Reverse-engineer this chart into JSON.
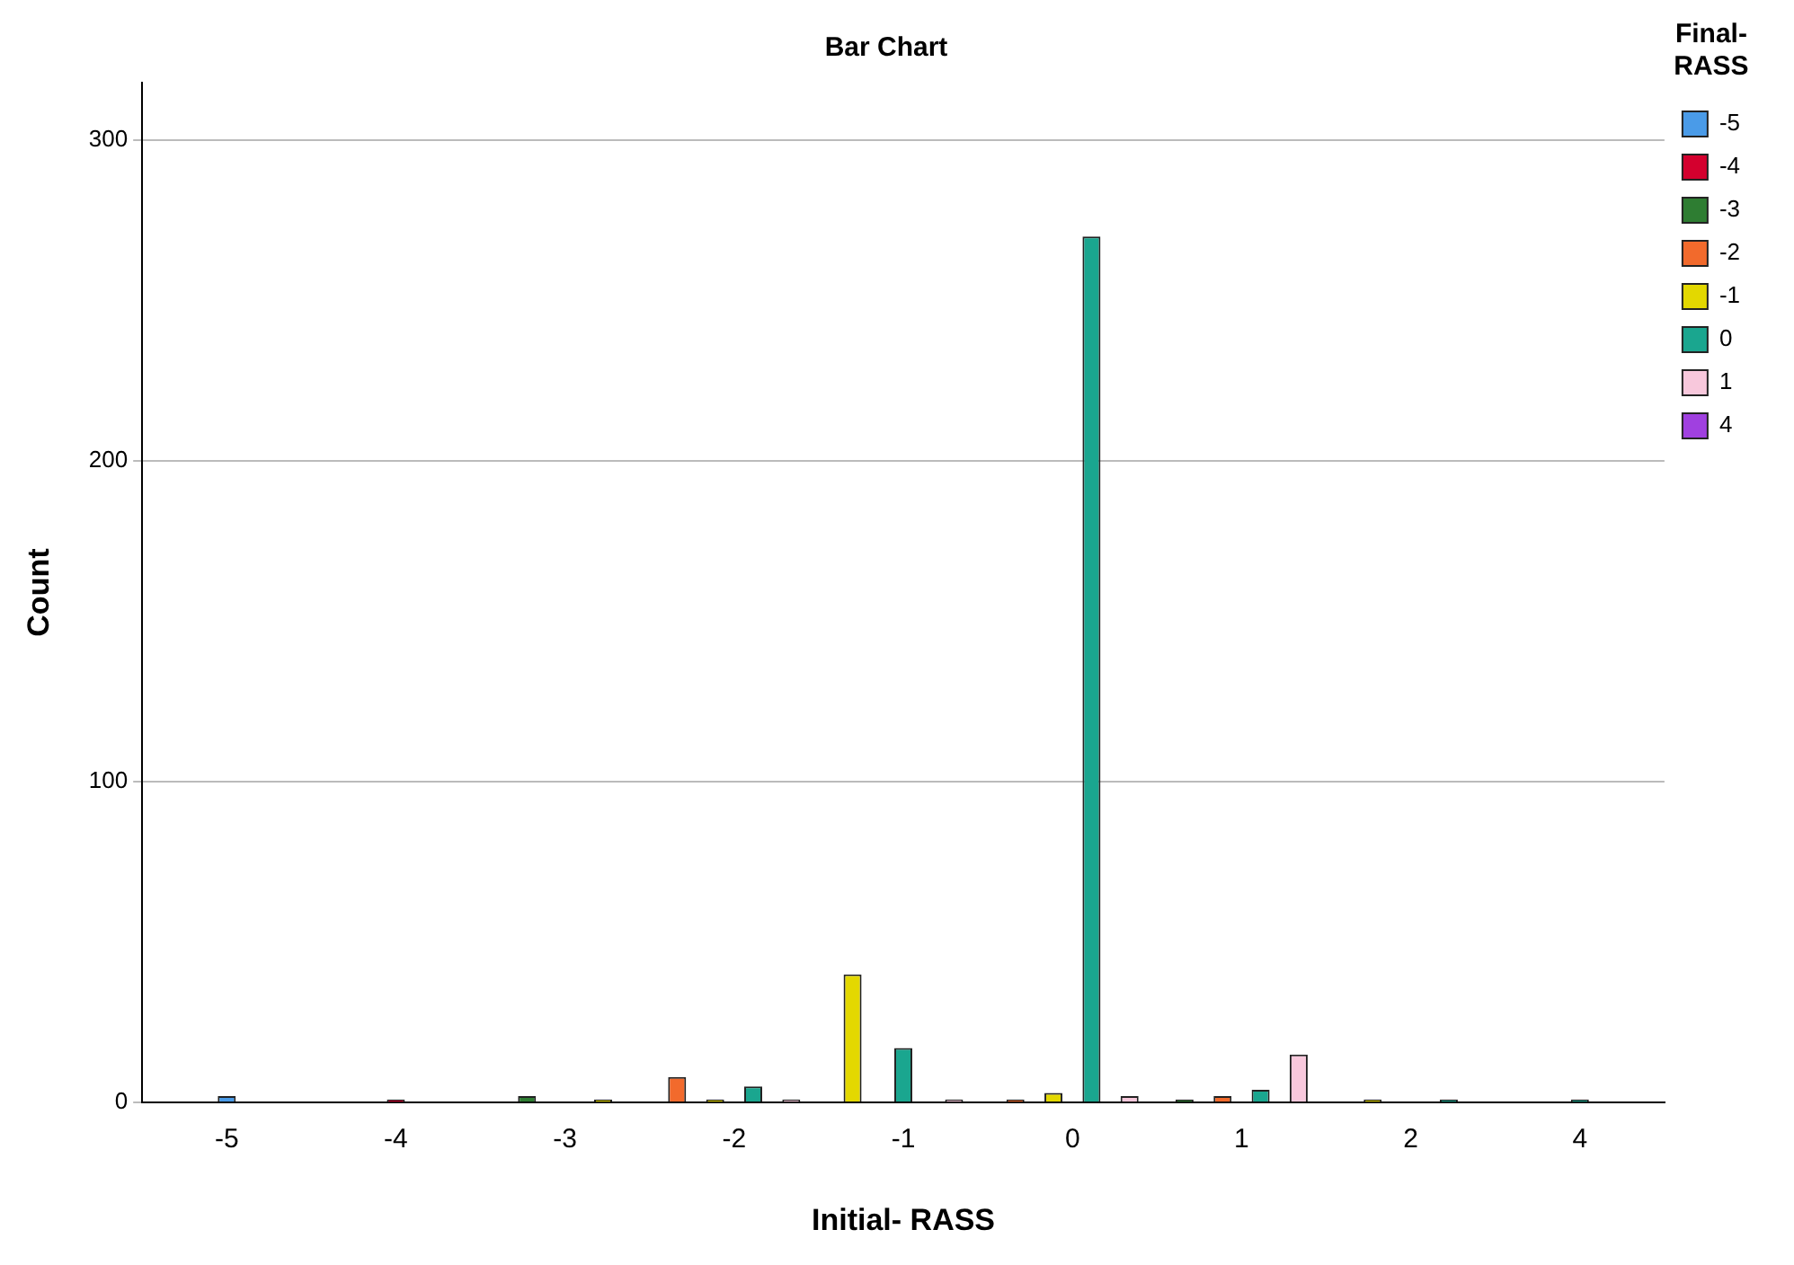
{
  "chart_data": {
    "type": "bar",
    "title": "Bar Chart",
    "xlabel": "Initial- RASS",
    "ylabel": "Count",
    "legend_title": "Final-RASS",
    "categories": [
      "-5",
      "-4",
      "-3",
      "-2",
      "-1",
      "0",
      "1",
      "2",
      "4"
    ],
    "series": [
      {
        "name": "-5",
        "color": "#4a9be8",
        "values": [
          2,
          null,
          null,
          null,
          null,
          null,
          null,
          null,
          null
        ]
      },
      {
        "name": "-4",
        "color": "#d4002e",
        "values": [
          null,
          1,
          null,
          null,
          null,
          null,
          null,
          null,
          null
        ]
      },
      {
        "name": "-3",
        "color": "#2e7d32",
        "values": [
          null,
          null,
          2,
          null,
          null,
          null,
          1,
          null,
          null
        ]
      },
      {
        "name": "-2",
        "color": "#f26a2c",
        "values": [
          null,
          null,
          null,
          8,
          null,
          1,
          2,
          null,
          null
        ]
      },
      {
        "name": "-1",
        "color": "#e3d800",
        "values": [
          null,
          null,
          1,
          1,
          40,
          3,
          null,
          1,
          null
        ]
      },
      {
        "name": "0",
        "color": "#1aa68f",
        "values": [
          null,
          null,
          null,
          5,
          17,
          270,
          4,
          1,
          1
        ]
      },
      {
        "name": "1",
        "color": "#f8c8dc",
        "values": [
          null,
          null,
          null,
          1,
          1,
          2,
          15,
          null,
          null
        ]
      },
      {
        "name": "4",
        "color": "#a040e0",
        "values": [
          null,
          null,
          null,
          null,
          null,
          null,
          null,
          null,
          null
        ]
      }
    ],
    "ylim": [
      0,
      318
    ],
    "yticks": [
      0,
      100,
      200,
      300
    ],
    "grid": "y",
    "legend": "top right"
  }
}
